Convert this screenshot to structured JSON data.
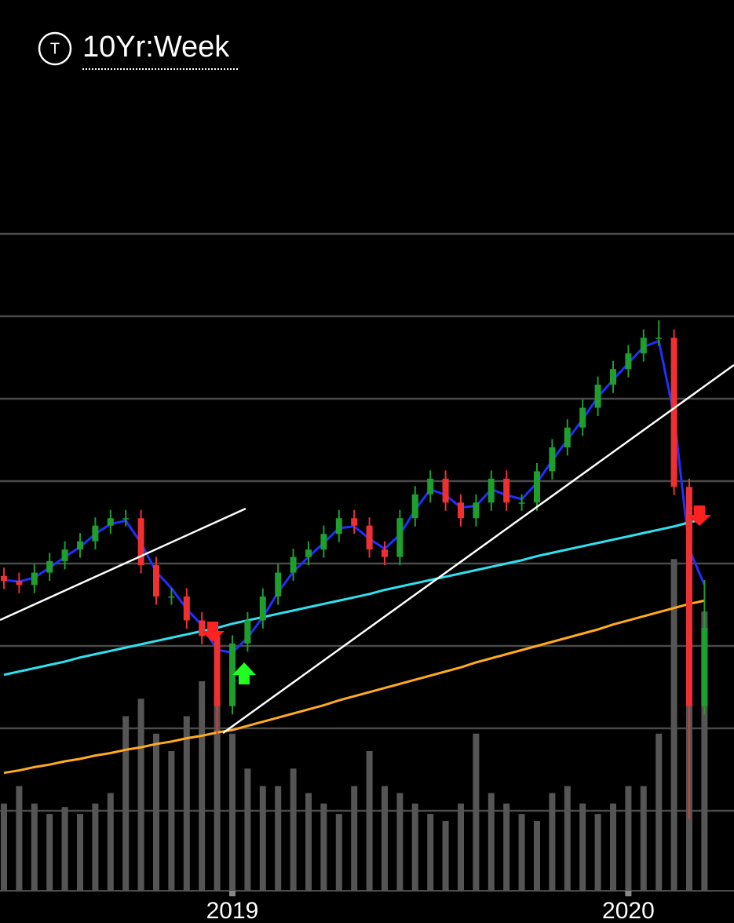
{
  "chart_data": {
    "type": "candlestick",
    "title": "10Yr:Week",
    "icon_label": "T",
    "categories": [
      null,
      null,
      null,
      null,
      null,
      null,
      null,
      null,
      null,
      null,
      null,
      null,
      null,
      null,
      null,
      "2019",
      null,
      null,
      null,
      null,
      null,
      null,
      null,
      null,
      null,
      null,
      null,
      null,
      null,
      null,
      null,
      null,
      null,
      null,
      null,
      null,
      null,
      null,
      null,
      null,
      null,
      "2020",
      null,
      null,
      null,
      null,
      null
    ],
    "open": [
      38.5,
      37.9,
      37.4,
      38.9,
      40.3,
      41.7,
      42.7,
      44.6,
      45.5,
      45.5,
      39.8,
      36.0,
      36.0,
      33.1,
      31.2,
      22.7,
      30.3,
      33.1,
      36.0,
      38.9,
      40.8,
      41.7,
      43.6,
      45.5,
      44.6,
      41.7,
      40.8,
      45.5,
      48.4,
      50.3,
      47.4,
      45.5,
      47.4,
      50.3,
      47.4,
      47.4,
      51.2,
      54.1,
      56.5,
      58.9,
      61.7,
      63.6,
      65.5,
      67.4,
      67.4,
      49.3,
      22.7
    ],
    "high": [
      39.5,
      38.9,
      39.9,
      41.3,
      42.7,
      43.7,
      45.6,
      46.5,
      46.5,
      46.5,
      40.8,
      37.0,
      37.0,
      34.1,
      32.2,
      31.3,
      34.1,
      37.0,
      39.9,
      41.8,
      42.7,
      44.6,
      46.5,
      46.5,
      45.6,
      42.7,
      46.5,
      49.4,
      51.3,
      51.3,
      48.4,
      48.4,
      51.3,
      51.3,
      48.4,
      52.2,
      55.1,
      57.5,
      59.9,
      62.7,
      64.6,
      66.5,
      68.4,
      69.5,
      68.4,
      50.3,
      38.0
    ],
    "low": [
      36.9,
      36.4,
      36.4,
      37.9,
      39.3,
      40.7,
      41.7,
      43.6,
      44.5,
      38.8,
      35.0,
      35.0,
      32.1,
      30.2,
      19.3,
      21.7,
      29.3,
      32.1,
      35.0,
      37.9,
      39.8,
      40.7,
      42.6,
      43.6,
      40.7,
      39.8,
      39.8,
      44.5,
      47.4,
      46.4,
      44.5,
      44.5,
      46.4,
      46.4,
      46.4,
      46.4,
      50.2,
      53.1,
      55.5,
      57.9,
      60.7,
      62.6,
      64.5,
      66.4,
      48.3,
      9.0,
      21.7
    ],
    "close": [
      37.9,
      37.4,
      38.9,
      40.3,
      41.7,
      42.7,
      44.6,
      45.5,
      45.5,
      39.8,
      36.0,
      36.0,
      33.1,
      31.2,
      22.7,
      30.3,
      33.1,
      36.0,
      38.9,
      40.8,
      41.7,
      43.6,
      45.5,
      44.6,
      41.7,
      40.8,
      45.5,
      48.4,
      50.3,
      47.4,
      45.5,
      47.4,
      50.3,
      47.4,
      47.4,
      51.2,
      54.1,
      56.5,
      58.9,
      61.7,
      63.6,
      65.5,
      67.4,
      67.4,
      49.3,
      22.7,
      32.2
    ],
    "up_color": "#1e9e2c",
    "down_color": "#ee3030",
    "ylim": [
      0,
      90
    ],
    "gridlines": [
      10,
      20,
      30,
      40,
      50,
      60,
      70,
      80
    ],
    "grid_color": "#4a4a4a",
    "volume": [
      25,
      30,
      25,
      22,
      24,
      22,
      25,
      28,
      50,
      55,
      45,
      40,
      50,
      60,
      55,
      45,
      35,
      30,
      30,
      35,
      28,
      25,
      22,
      30,
      40,
      30,
      28,
      25,
      22,
      20,
      25,
      45,
      28,
      25,
      22,
      20,
      28,
      30,
      25,
      22,
      25,
      30,
      30,
      45,
      95,
      100,
      80
    ],
    "volume_color": "#555555",
    "vlim": [
      0,
      100
    ],
    "lines": [
      {
        "color": "#2030ff",
        "values": [
          38,
          37.8,
          38.3,
          39.5,
          40.8,
          42,
          43.6,
          44.8,
          45.2,
          42.5,
          39,
          37,
          34.5,
          32.5,
          29.5,
          29.2,
          31,
          33.5,
          36.5,
          39,
          40.8,
          42.5,
          44.3,
          44.5,
          43,
          41.8,
          43.5,
          46.5,
          49,
          48.3,
          46.8,
          47,
          49,
          48.3,
          47.8,
          49.8,
          52.5,
          55,
          57.5,
          60.2,
          62.3,
          64.3,
          66.3,
          67,
          58,
          41.7,
          37.4
        ]
      },
      {
        "color": "#30e0f0",
        "values": [
          26.5,
          26.9,
          27.3,
          27.7,
          28.1,
          28.6,
          29.0,
          29.4,
          29.8,
          30.2,
          30.6,
          31.0,
          31.4,
          31.8,
          32.2,
          32.7,
          33.1,
          33.5,
          33.9,
          34.3,
          34.7,
          35.1,
          35.5,
          35.9,
          36.3,
          36.8,
          37.2,
          37.6,
          38.0,
          38.4,
          38.8,
          39.2,
          39.6,
          40.0,
          40.4,
          40.9,
          41.3,
          41.7,
          42.1,
          42.5,
          42.9,
          43.3,
          43.7,
          44.1,
          44.5,
          45.0,
          45.4
        ]
      },
      {
        "color": "#ffaa20",
        "values": [
          14.6,
          14.9,
          15.3,
          15.6,
          16.0,
          16.3,
          16.7,
          17.0,
          17.4,
          17.7,
          18.1,
          18.4,
          18.8,
          19.1,
          19.5,
          19.8,
          20.3,
          20.8,
          21.3,
          21.8,
          22.3,
          22.8,
          23.4,
          23.9,
          24.4,
          24.9,
          25.4,
          25.9,
          26.4,
          26.9,
          27.4,
          28.0,
          28.5,
          29.0,
          29.5,
          30.0,
          30.5,
          31.0,
          31.5,
          32.0,
          32.6,
          33.1,
          33.6,
          34.1,
          34.6,
          35.1,
          35.5
        ]
      }
    ]
  }
}
